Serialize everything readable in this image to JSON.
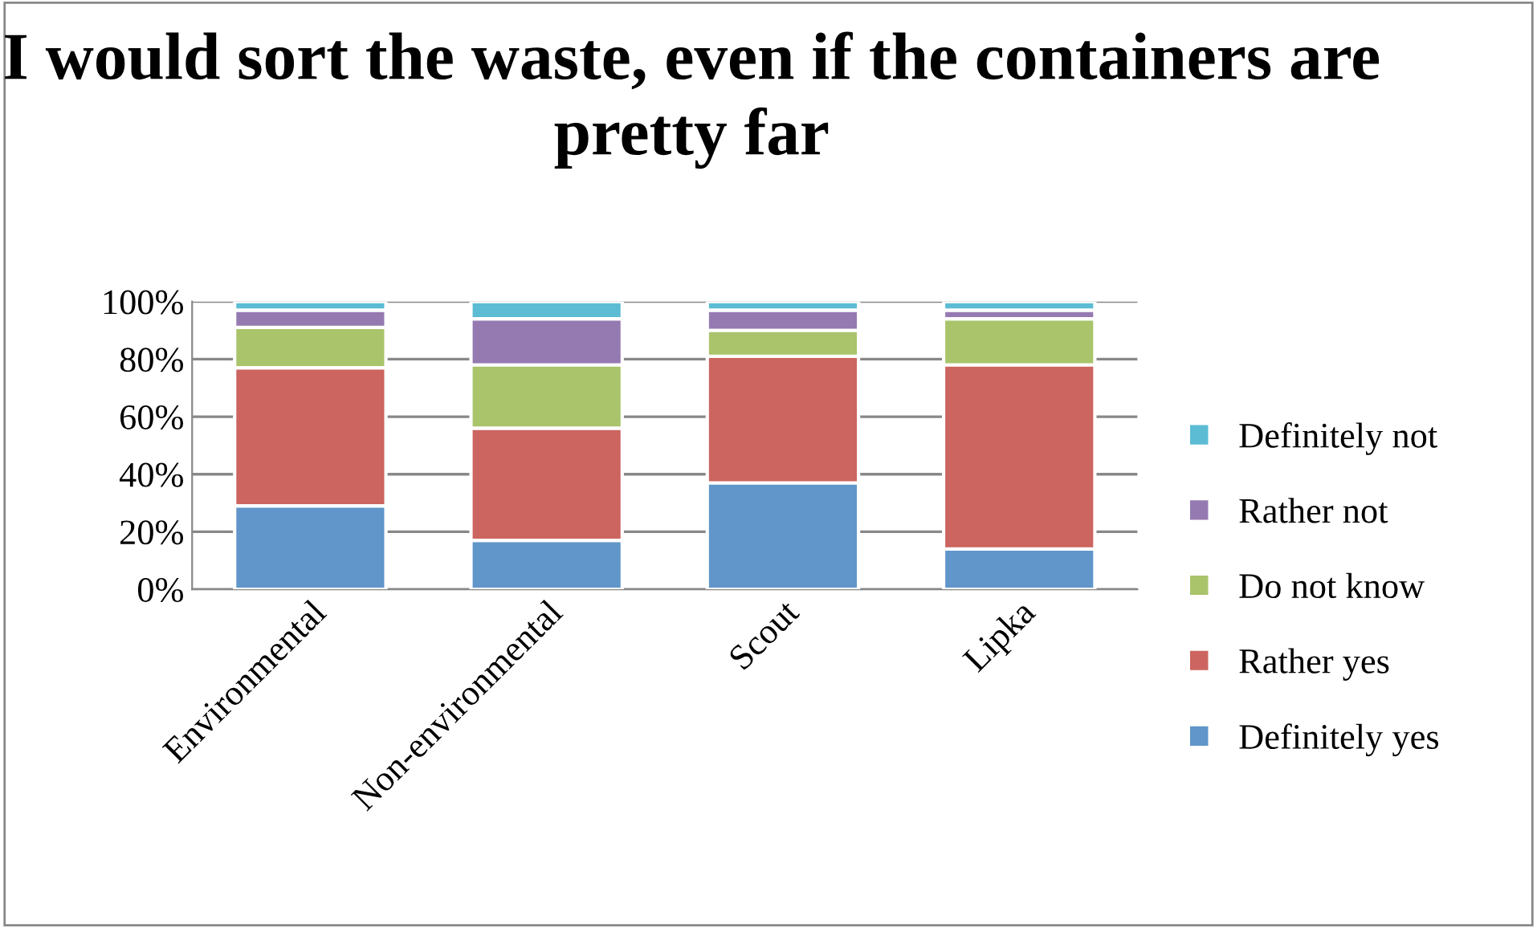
{
  "chart_data": {
    "type": "bar",
    "title": "I would sort the waste, even if the containers are pretty far",
    "stacked": true,
    "categories": [
      "Environmental",
      "Non-environmental",
      "Scout",
      "Lipka"
    ],
    "series": [
      {
        "name": "Definitely yes",
        "color": "#6096c9",
        "values": [
          29,
          17,
          37,
          14
        ]
      },
      {
        "name": "Rather yes",
        "color": "#cc645f",
        "values": [
          48,
          39,
          44,
          64
        ]
      },
      {
        "name": "Do not know",
        "color": "#a9c46b",
        "values": [
          14,
          22,
          9,
          16
        ]
      },
      {
        "name": "Rather not",
        "color": "#957ab1",
        "values": [
          6,
          16,
          7,
          3
        ]
      },
      {
        "name": "Definitely not",
        "color": "#5bbcd4",
        "values": [
          3,
          6,
          3,
          3
        ]
      }
    ],
    "ylim": [
      0,
      100
    ],
    "yticks": [
      {
        "value": 0,
        "label": "0%"
      },
      {
        "value": 20,
        "label": "20%"
      },
      {
        "value": 40,
        "label": "40%"
      },
      {
        "value": 60,
        "label": "60%"
      },
      {
        "value": 80,
        "label": "80%"
      },
      {
        "value": 100,
        "label": "100%"
      }
    ],
    "grid": "y",
    "legend": "right"
  }
}
